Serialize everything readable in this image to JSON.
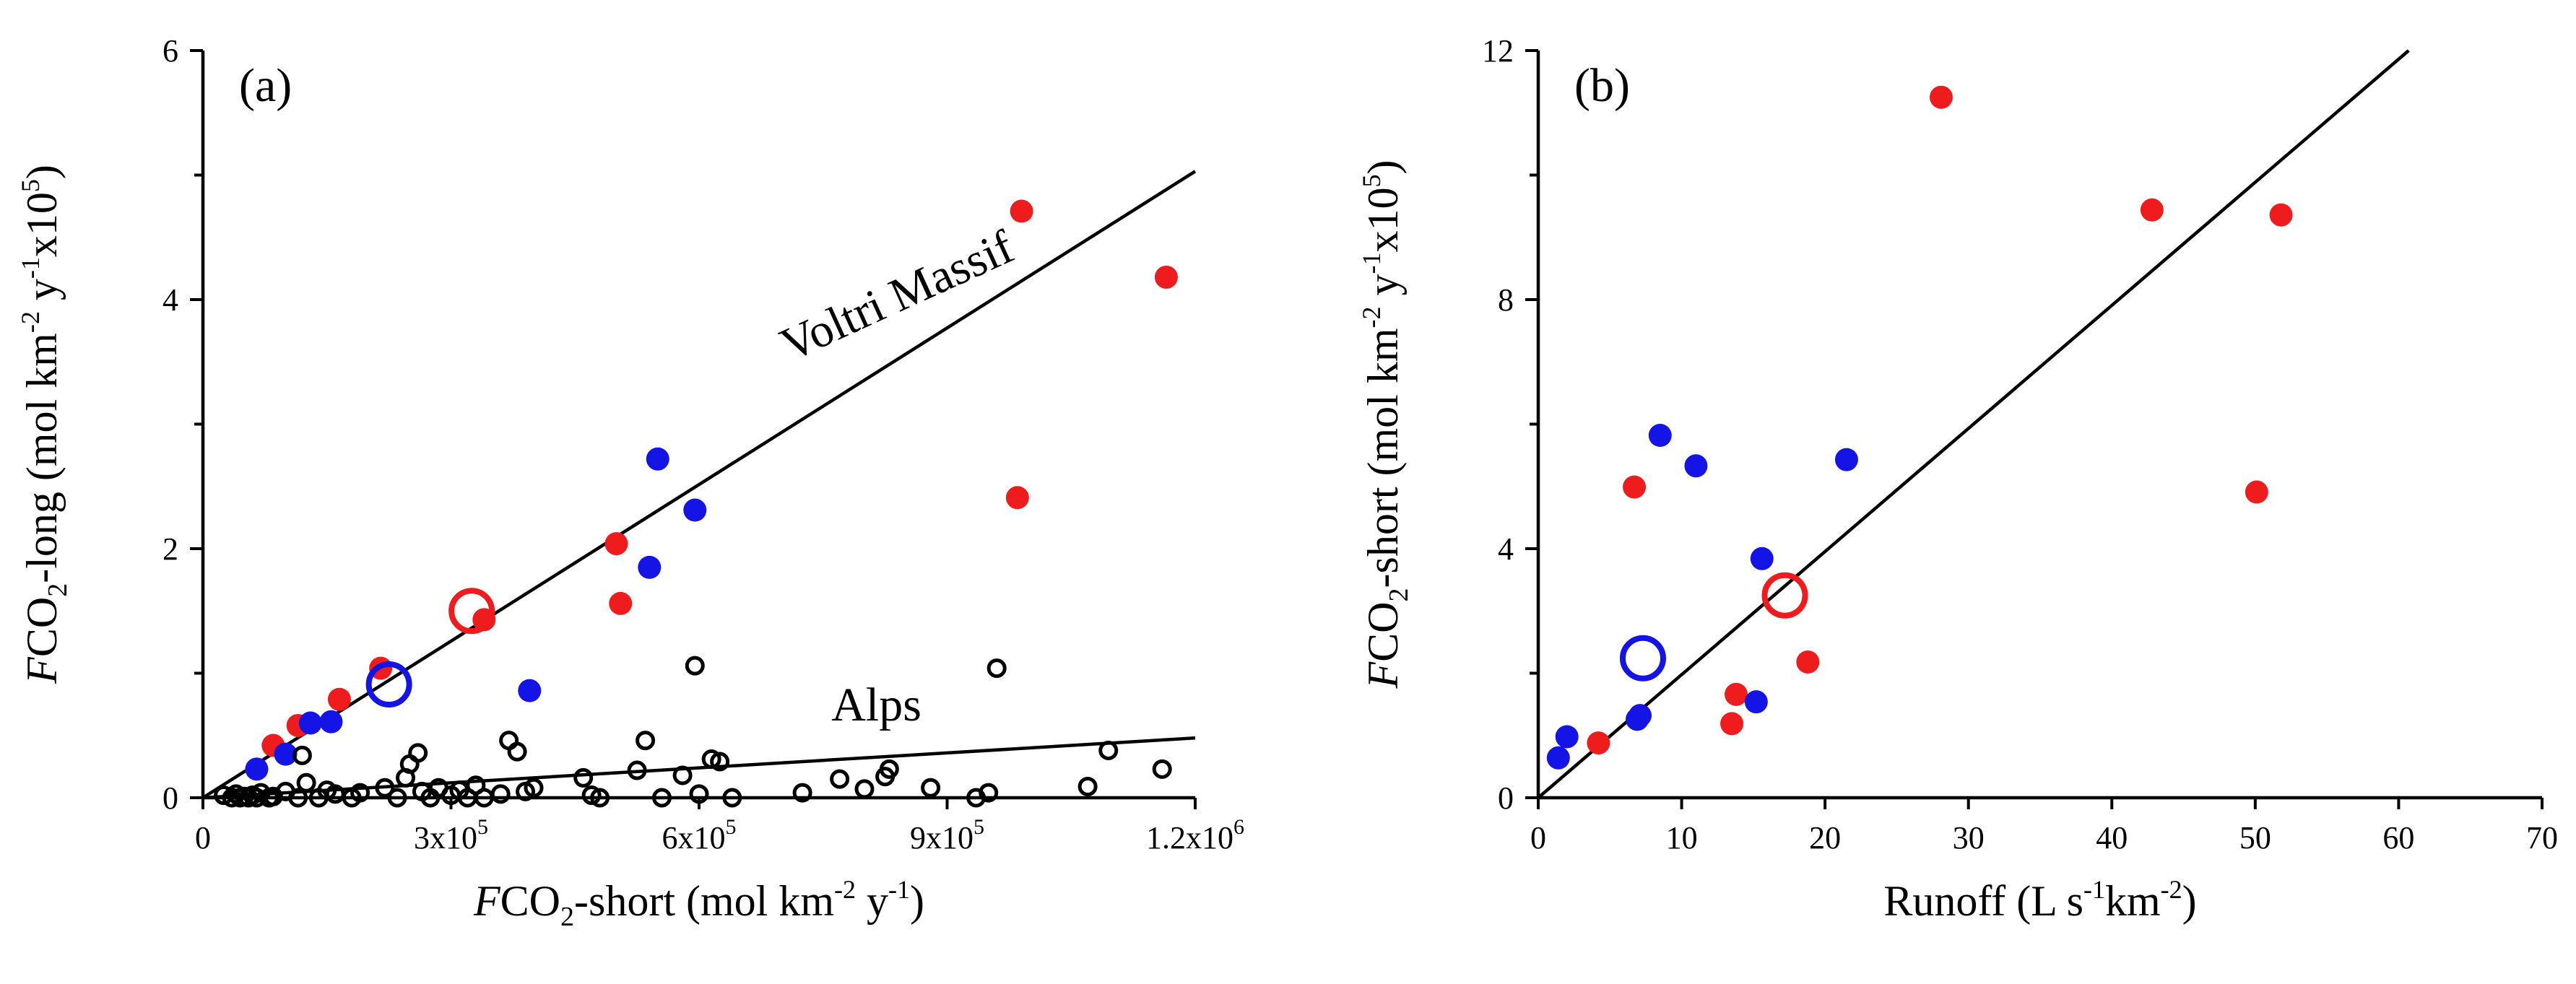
{
  "chart_data": [
    {
      "type": "scatter",
      "panel_label": "(a)",
      "xlabel": {
        "prefix_italic": "F",
        "main": "CO",
        "sub": "2",
        "rest": "-short (mol km",
        "sup1": "-2",
        "mid": " y",
        "sup2": "-1",
        "end": ")"
      },
      "ylabel": {
        "prefix_italic": "F",
        "main": "CO",
        "sub": "2",
        "rest": "-long (mol km",
        "sup1": "-2",
        "mid": " y",
        "sup2": "-1",
        "mid2": "x10",
        "sup3": "5",
        "end": ")"
      },
      "xlim": [
        0,
        1200000
      ],
      "ylim": [
        0,
        6
      ],
      "x_ticks": [
        {
          "value": 0,
          "label": "0",
          "exp": ""
        },
        {
          "value": 300000,
          "label": "3x10",
          "exp": "5"
        },
        {
          "value": 600000,
          "label": "6x10",
          "exp": "5"
        },
        {
          "value": 900000,
          "label": "9x10",
          "exp": "5"
        },
        {
          "value": 1200000,
          "label": "1.2x10",
          "exp": "6"
        }
      ],
      "y_ticks": [
        {
          "value": 0,
          "label": "0"
        },
        {
          "value": 2,
          "label": "2"
        },
        {
          "value": 4,
          "label": "4"
        },
        {
          "value": 6,
          "label": "6"
        }
      ],
      "fit_lines": [
        {
          "name": "Voltri Massif",
          "x1": 0,
          "y1": 0,
          "x2": 1200000,
          "y2": 5.03,
          "label": "Voltri Massif",
          "label_x": 710000,
          "label_y": 3.5,
          "label_angle_deg": -24.5
        },
        {
          "name": "Alps",
          "x1": 0,
          "y1": 0,
          "x2": 1200000,
          "y2": 0.48,
          "label": "Alps",
          "label_x": 760000,
          "label_y": 0.62,
          "label_angle_deg": 0
        }
      ],
      "series": [
        {
          "name": "red",
          "style": "filled",
          "color": "#ee1c1c",
          "points": [
            [
              85000,
              0.42
            ],
            [
              115000,
              0.58
            ],
            [
              165000,
              0.79
            ],
            [
              215000,
              1.04
            ],
            [
              340000,
              1.43
            ],
            [
              500000,
              2.04
            ],
            [
              505000,
              1.56
            ],
            [
              985000,
              2.41
            ],
            [
              990000,
              4.71
            ],
            [
              1165000,
              4.18
            ]
          ]
        },
        {
          "name": "blue",
          "style": "filled",
          "color": "#1414e6",
          "points": [
            [
              65000,
              0.23
            ],
            [
              100000,
              0.35
            ],
            [
              130000,
              0.6
            ],
            [
              155000,
              0.61
            ],
            [
              395000,
              0.86
            ],
            [
              540000,
              1.85
            ],
            [
              550000,
              2.72
            ],
            [
              595000,
              2.31
            ]
          ]
        },
        {
          "name": "red mean",
          "style": "open-large",
          "color": "#ee1c1c",
          "points": [
            [
              325000,
              1.5
            ]
          ]
        },
        {
          "name": "blue mean",
          "style": "open-large",
          "color": "#1414e6",
          "points": [
            [
              225000,
              0.91
            ]
          ]
        },
        {
          "name": "Alps",
          "style": "open-small",
          "color": "#000000",
          "points": [
            [
              25000,
              0.02
            ],
            [
              35000,
              0.0
            ],
            [
              40000,
              0.03
            ],
            [
              45000,
              0.0
            ],
            [
              50000,
              0.01
            ],
            [
              55000,
              0.0
            ],
            [
              60000,
              0.02
            ],
            [
              65000,
              0.0
            ],
            [
              70000,
              0.04
            ],
            [
              80000,
              0.0
            ],
            [
              85000,
              0.01
            ],
            [
              100000,
              0.05
            ],
            [
              115000,
              0.0
            ],
            [
              120000,
              0.34
            ],
            [
              125000,
              0.12
            ],
            [
              140000,
              0.0
            ],
            [
              150000,
              0.06
            ],
            [
              160000,
              0.03
            ],
            [
              180000,
              0.0
            ],
            [
              190000,
              0.04
            ],
            [
              220000,
              0.08
            ],
            [
              235000,
              0.0
            ],
            [
              245000,
              0.16
            ],
            [
              250000,
              0.27
            ],
            [
              260000,
              0.36
            ],
            [
              265000,
              0.05
            ],
            [
              275000,
              0.0
            ],
            [
              285000,
              0.08
            ],
            [
              300000,
              0.02
            ],
            [
              310000,
              0.06
            ],
            [
              320000,
              0.0
            ],
            [
              330000,
              0.1
            ],
            [
              340000,
              0.0
            ],
            [
              360000,
              0.03
            ],
            [
              370000,
              0.46
            ],
            [
              380000,
              0.37
            ],
            [
              390000,
              0.05
            ],
            [
              400000,
              0.08
            ],
            [
              460000,
              0.16
            ],
            [
              470000,
              0.02
            ],
            [
              480000,
              0.0
            ],
            [
              525000,
              0.22
            ],
            [
              535000,
              0.46
            ],
            [
              555000,
              0.0
            ],
            [
              580000,
              0.18
            ],
            [
              595000,
              1.06
            ],
            [
              600000,
              0.03
            ],
            [
              615000,
              0.31
            ],
            [
              625000,
              0.29
            ],
            [
              640000,
              0.0
            ],
            [
              725000,
              0.04
            ],
            [
              770000,
              0.15
            ],
            [
              800000,
              0.07
            ],
            [
              825000,
              0.17
            ],
            [
              830000,
              0.23
            ],
            [
              880000,
              0.08
            ],
            [
              935000,
              0.0
            ],
            [
              950000,
              0.04
            ],
            [
              960000,
              1.04
            ],
            [
              1070000,
              0.09
            ],
            [
              1095000,
              0.38
            ],
            [
              1160000,
              0.23
            ]
          ]
        }
      ]
    },
    {
      "type": "scatter",
      "panel_label": "(b)",
      "xlabel": {
        "main": "Runoff (L s",
        "sup1": "-1",
        "mid": "km",
        "sup2": "-2",
        "end": ")"
      },
      "ylabel": {
        "prefix_italic": "F",
        "main": "CO",
        "sub": "2",
        "rest": "-short (mol km",
        "sup1": "-2",
        "mid": " y",
        "sup2": "-1",
        "mid2": "x10",
        "sup3": "5",
        "end": ")"
      },
      "xlim": [
        0,
        70
      ],
      "ylim": [
        0,
        12
      ],
      "x_ticks": [
        {
          "value": 0,
          "label": "0"
        },
        {
          "value": 10,
          "label": "10"
        },
        {
          "value": 20,
          "label": "20"
        },
        {
          "value": 30,
          "label": "30"
        },
        {
          "value": 40,
          "label": "40"
        },
        {
          "value": 50,
          "label": "50"
        },
        {
          "value": 60,
          "label": "60"
        },
        {
          "value": 70,
          "label": "70"
        }
      ],
      "y_ticks": [
        {
          "value": 0,
          "label": "0"
        },
        {
          "value": 4,
          "label": "4"
        },
        {
          "value": 8,
          "label": "8"
        },
        {
          "value": 12,
          "label": "12"
        }
      ],
      "fit_lines": [
        {
          "name": "fit",
          "x1": 0,
          "y1": 0,
          "x2": 60.7,
          "y2": 12.0
        }
      ],
      "series": [
        {
          "name": "red",
          "style": "filled",
          "color": "#ee1c1c",
          "points": [
            [
              4.2,
              0.88
            ],
            [
              6.7,
              4.99
            ],
            [
              13.5,
              1.19
            ],
            [
              13.8,
              1.66
            ],
            [
              18.8,
              2.18
            ],
            [
              28.1,
              11.25
            ],
            [
              42.8,
              9.44
            ],
            [
              50.1,
              4.91
            ],
            [
              51.8,
              9.36
            ]
          ]
        },
        {
          "name": "blue",
          "style": "filled",
          "color": "#1414e6",
          "points": [
            [
              1.4,
              0.64
            ],
            [
              2.0,
              0.98
            ],
            [
              6.9,
              1.26
            ],
            [
              7.1,
              1.32
            ],
            [
              8.5,
              5.82
            ],
            [
              11.0,
              5.33
            ],
            [
              15.2,
              1.54
            ],
            [
              15.6,
              3.84
            ],
            [
              21.5,
              5.43
            ]
          ]
        },
        {
          "name": "red mean",
          "style": "open-large",
          "color": "#ee1c1c",
          "points": [
            [
              17.2,
              3.25
            ]
          ]
        },
        {
          "name": "blue mean",
          "style": "open-large",
          "color": "#1414e6",
          "points": [
            [
              7.3,
              2.24
            ]
          ]
        }
      ]
    }
  ]
}
